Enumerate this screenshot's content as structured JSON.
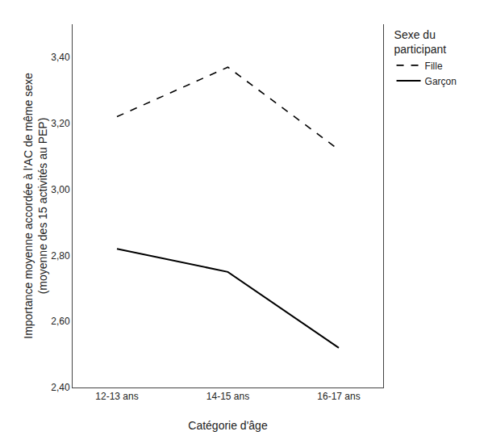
{
  "chart_data": {
    "type": "line",
    "categories": [
      "12-13 ans",
      "14-15 ans",
      "16-17 ans"
    ],
    "series": [
      {
        "name": "Fille",
        "color": "#000000",
        "line_style": "dashed",
        "values": [
          3.22,
          3.37,
          3.12
        ]
      },
      {
        "name": "Garçon",
        "color": "#000000",
        "line_style": "solid",
        "values": [
          2.82,
          2.75,
          2.52
        ]
      }
    ],
    "x_label": "Catégorie d'âge",
    "y_label": "Importance moyenne accordée à l'AC de même sexe\n(moyenne des 15 activités au PEP)",
    "legend_title": "Sexe du\nparticipant",
    "legend": "right",
    "ylim": [
      2.4,
      3.5
    ],
    "yticks": [
      {
        "value": 2.4,
        "label": "2,40"
      },
      {
        "value": 2.6,
        "label": "2,60"
      },
      {
        "value": 2.8,
        "label": "2,80"
      },
      {
        "value": 3.0,
        "label": "3,00"
      },
      {
        "value": 3.2,
        "label": "3,20"
      },
      {
        "value": 3.4,
        "label": "3,40"
      }
    ],
    "grid": false
  }
}
